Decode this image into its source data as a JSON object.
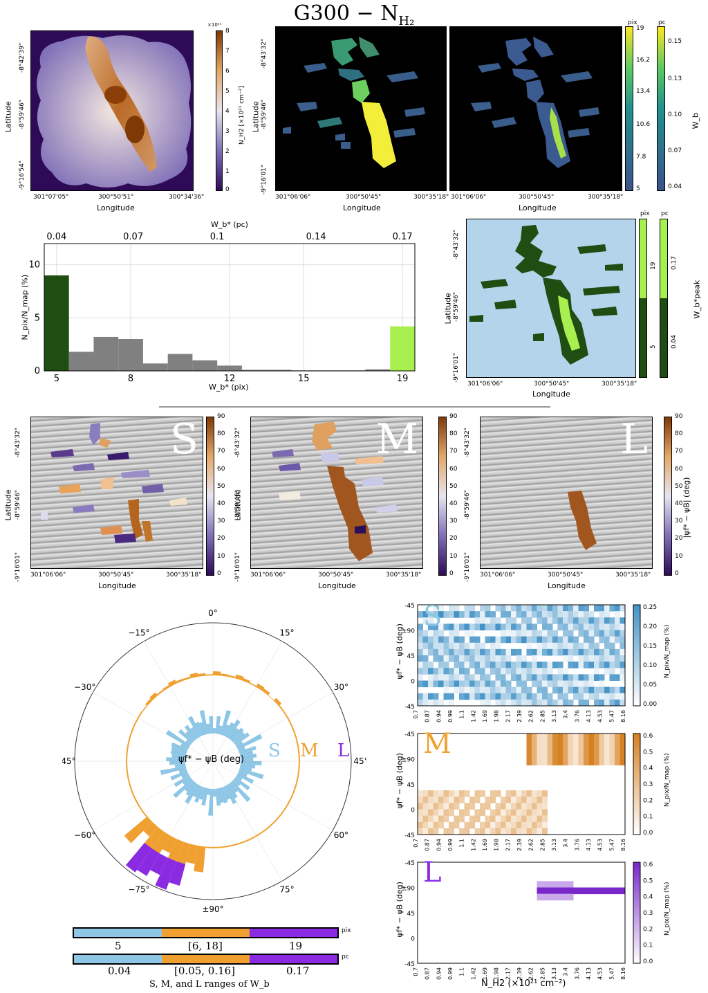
{
  "title": "G300 − N_H2",
  "title_text": "G300 − N",
  "title_sub": "H₂",
  "axes": {
    "longitude": "Longitude",
    "latitude": "Latitude",
    "lon_ticks_a": [
      "301°07'05\"",
      "300°50'51\"",
      "300°34'36\""
    ],
    "lat_ticks_a": [
      "-8°42'39\"",
      "-8°59'46\"",
      "-9°16'54\""
    ],
    "lon_ticks_b": [
      "301°06'06\"",
      "300°50'45\"",
      "300°35'18\""
    ],
    "lat_ticks_b": [
      "-8°43'32\"",
      "-8°59'46\"",
      "-9°16'01\""
    ]
  },
  "colorbars": {
    "nh2": {
      "label": "N_H2 [×10²¹ cm⁻²]",
      "exp": "×10²¹",
      "ticks": [
        "0",
        "1",
        "2",
        "3",
        "4",
        "5",
        "6",
        "7",
        "8"
      ]
    },
    "wb_pix": {
      "unit": "pix",
      "ticks": [
        "19",
        "16.2",
        "13.4",
        "10.6",
        "7.8",
        "5"
      ]
    },
    "wb_pc": {
      "unit": "pc",
      "label": "W_b",
      "ticks": [
        "0.15",
        "0.13",
        "0.10",
        "0.07",
        "0.04"
      ]
    },
    "peak_pix": {
      "unit": "pix",
      "ticks": [
        "19",
        "5"
      ]
    },
    "peak_pc": {
      "unit": "pc",
      "label": "W_b*peak",
      "ticks": [
        "0.17",
        "0.04"
      ]
    },
    "angle": {
      "label": "|ψf* − ψB| (deg)",
      "ticks": [
        "90",
        "80",
        "70",
        "60",
        "50",
        "40",
        "30",
        "20",
        "10",
        "0"
      ]
    }
  },
  "panel_letters": {
    "s": "S",
    "m": "M",
    "l": "L"
  },
  "colors": {
    "small": "#8ec6e6",
    "medium": "#f0a030",
    "large": "#8a2be2",
    "peak_low": "#1f4d12",
    "peak_high": "#a8f050",
    "hist_gray": "#808080",
    "bg_blue": "#b3d4ea"
  },
  "chart_data": [
    {
      "type": "bar",
      "x_top_label": "W_b* (pc)",
      "x_top_ticks": [
        "0.04",
        "0.07",
        "0.1",
        "0.14",
        "0.17"
      ],
      "xlabel": "W_b* (pix)",
      "x_ticks": [
        "5",
        "8",
        "12",
        "15",
        "19"
      ],
      "ylabel": "N_pix/N_map (%)",
      "y_ticks": [
        "0",
        "5",
        "10"
      ],
      "ylim": [
        0,
        12
      ],
      "xlim": [
        4.5,
        19.5
      ],
      "bins": [
        5,
        6,
        7,
        8,
        9,
        10,
        11,
        12,
        13,
        14,
        15,
        16,
        17,
        18,
        19
      ],
      "values": [
        9.0,
        1.8,
        3.2,
        3.0,
        0.7,
        1.6,
        1.0,
        0.5,
        0.1,
        0.1,
        0.05,
        0.05,
        0.05,
        0.15,
        4.2
      ],
      "grid": true
    },
    {
      "type": "polar-histogram",
      "center_label": "ψf* − ψB (deg)",
      "angle_labels": [
        "0°",
        "15°",
        "30°",
        "45°",
        "60°",
        "75°",
        "±90°",
        "−75°",
        "−60°",
        "−45°",
        "−30°",
        "−15°"
      ],
      "series_labels": [
        "S",
        "M",
        "L"
      ],
      "ranges_title": "S, M, and L ranges of W_b",
      "pix_ranges": [
        "5",
        "[6, 18]",
        "19"
      ],
      "pc_ranges": [
        "0.04",
        "[0.05, 0.16]",
        "0.17"
      ],
      "range_units": [
        "pix",
        "pc"
      ]
    },
    {
      "type": "heatmap",
      "panels": [
        "S",
        "M",
        "L"
      ],
      "xlabel": "N_H2 (×10²¹ cm⁻²)",
      "x_ticks": [
        "0.7",
        "0.87",
        "0.94",
        "0.99",
        "1.1",
        "1.42",
        "1.69",
        "1.98",
        "2.17",
        "2.39",
        "2.62",
        "2.85",
        "3.13",
        "3.4",
        "3.76",
        "4.13",
        "4.53",
        "5.47",
        "8.16"
      ],
      "ylabel": "ψf* − ψB (deg)",
      "y_ticks": [
        "-45",
        "±90",
        "45",
        "0",
        "-45"
      ],
      "colorbar_label": "N_pix/N_map (%)",
      "cbar_ticks_S": [
        "0.25",
        "0.20",
        "0.15",
        "0.10",
        "0.05",
        "0.00"
      ],
      "cbar_ticks_M": [
        "0.6",
        "0.5",
        "0.4",
        "0.3",
        "0.2",
        "0.1",
        "0.0"
      ],
      "cbar_ticks_L": [
        "0.6",
        "0.5",
        "0.4",
        "0.3",
        "0.2",
        "0.1",
        "0.0"
      ]
    }
  ]
}
